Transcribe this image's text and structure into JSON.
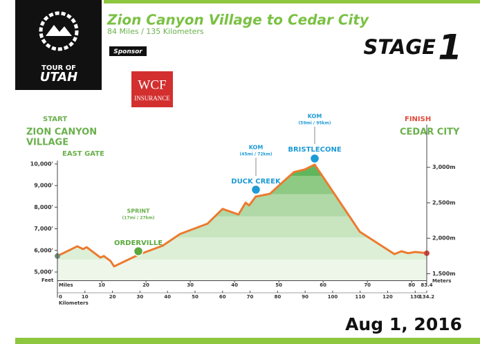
{
  "header": {
    "logo_top": "TOUR OF",
    "logo_bottom": "UTAH",
    "sponsor_label": "Sponsor",
    "sponsor_name": "WCF",
    "sponsor_sub": "INSURANCE",
    "stage": "STAGE",
    "stage_number": "1",
    "date": "Aug 1, 2016"
  },
  "chart_data": {
    "type": "area",
    "title": "Zion Canyon Village to Cedar City",
    "subtitle": "84 Miles / 135 Kilometers",
    "x_label": "Miles",
    "x2_label": "Kilometers",
    "y_label": "Feet",
    "y2_label": "Meters",
    "x": [
      0,
      4.5,
      5.8,
      6.6,
      9.7,
      10.5,
      12,
      12.8,
      18.3,
      23.8,
      27.7,
      33.9,
      37.3,
      40.9,
      42.5,
      43.3,
      44.8,
      48,
      51.1,
      53.4,
      54.5,
      55.8,
      58.1,
      68.3,
      76.1,
      77.7,
      79.2,
      80.8,
      83.4
    ],
    "values": [
      5740,
      6190,
      6060,
      6150,
      5670,
      5740,
      5510,
      5260,
      5800,
      6220,
      6760,
      7240,
      7920,
      7660,
      8210,
      8080,
      8490,
      8620,
      9200,
      9620,
      9680,
      9740,
      9970,
      6860,
      5830,
      5960,
      5870,
      5930,
      5870
    ],
    "color": "#ec7a2f",
    "xlim": [
      0,
      83.4
    ],
    "xticks": [
      0,
      10,
      20,
      30,
      40,
      50,
      60,
      70,
      80,
      83.4
    ],
    "x2lim": [
      0,
      134.2
    ],
    "x2ticks": [
      0,
      10,
      20,
      30,
      40,
      50,
      60,
      70,
      80,
      90,
      100,
      110,
      120,
      130,
      134.2
    ],
    "ylim": [
      4600,
      10700
    ],
    "yticks": [
      {
        "value": 5000,
        "label": "5,000'"
      },
      {
        "value": 6000,
        "label": "6,000'"
      },
      {
        "value": 7000,
        "label": "7,000'"
      },
      {
        "value": 8000,
        "label": "8,000'"
      },
      {
        "value": 9000,
        "label": "9,000'"
      },
      {
        "value": 10000,
        "label": "10,000'"
      }
    ],
    "y2lim": [
      1402,
      3261
    ],
    "y2ticks": [
      {
        "value": 1500,
        "label": "1,500m"
      },
      {
        "value": 2000,
        "label": "2,000m"
      },
      {
        "value": 2500,
        "label": "2,500m"
      },
      {
        "value": 3000,
        "label": "3,000m"
      }
    ],
    "annotations": [
      "START",
      "ZION CANYON",
      "VILLAGE",
      "EAST GATE",
      "FINISH",
      "CEDAR CITY",
      "SPRINT",
      "(17mi / 27km)",
      "ORDERVILLE",
      "KOM",
      "(45mi / 72km)",
      "DUCK CREEK",
      "KOM",
      "(59mi / 95km)",
      "BRISTLECONE"
    ]
  }
}
